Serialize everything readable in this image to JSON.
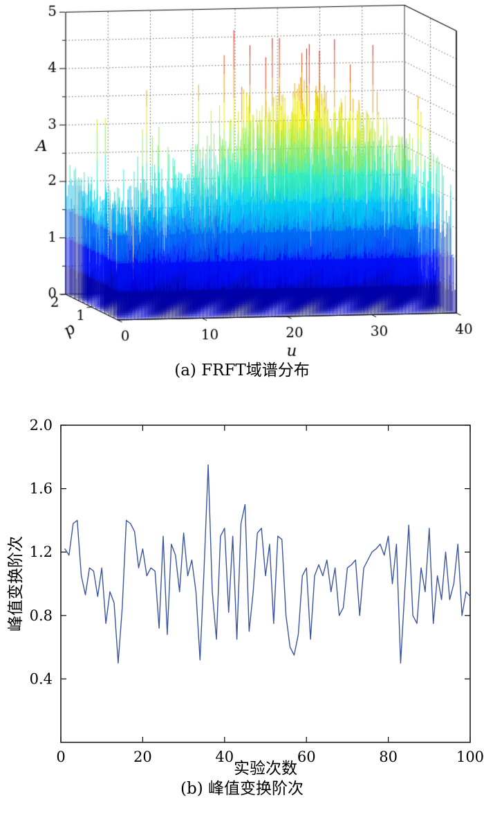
{
  "page": {
    "background": "#ffffff"
  },
  "figure_a": {
    "caption": "(a) FRFT域谱分布",
    "chart_data": {
      "type": "3d-mesh",
      "title": "",
      "xlabel": "u",
      "ylabel": "p",
      "zlabel": "A",
      "x_ticks": [
        "0",
        "10",
        "20",
        "30",
        "40"
      ],
      "y_ticks": [
        "1",
        "2"
      ],
      "z_ticks": [
        "0",
        "1",
        "2",
        "3",
        "4",
        "5"
      ],
      "xlim": [
        0,
        40
      ],
      "ylim": [
        0,
        2
      ],
      "zlim": [
        0,
        5
      ],
      "grid": "dotted",
      "colormap": "jet",
      "colors": {
        "spike_low": "#00007f",
        "spike_mid": "#00c8c8",
        "spike_high": "#ffd000",
        "box": "#000000"
      },
      "description": "Dense random FRFT-domain spectrum amplitude spikes over u (0-40) and p (0-2); amplitudes mostly 0.5-3 (dark blue to cyan) with occasional peaks near 4.5 (yellow/red) concentrated around u = 15-35; solid low dark block near u = 0",
      "generation": {
        "seed": 7,
        "rows": 13,
        "cols": 240,
        "amp_base": 0.9,
        "bump_center": 26,
        "bump_width": 16,
        "bump_height": 1.3,
        "max_amp": 4.7
      }
    }
  },
  "figure_b": {
    "caption": "(b) 峰值变换阶次",
    "chart_data": {
      "type": "line",
      "title": "",
      "xlabel": "实验次数",
      "ylabel": "峰值变换阶次",
      "x_ticks": [
        "0",
        "20",
        "40",
        "60",
        "80",
        "100"
      ],
      "y_ticks": [
        "0.4",
        "0.8",
        "1.2",
        "1.6",
        "2.0"
      ],
      "xlim": [
        0,
        100
      ],
      "ylim": [
        0,
        2.0
      ],
      "grid": "off",
      "legend": "none",
      "line_color": "#3b55a0",
      "x_start": 1,
      "values": [
        1.22,
        1.18,
        1.38,
        1.4,
        1.05,
        0.93,
        1.1,
        1.08,
        0.92,
        1.1,
        0.75,
        0.95,
        0.88,
        0.5,
        0.85,
        1.4,
        1.38,
        1.33,
        1.1,
        1.22,
        1.05,
        1.1,
        1.08,
        0.72,
        1.3,
        0.68,
        1.25,
        1.18,
        0.95,
        1.32,
        1.05,
        1.15,
        0.95,
        0.52,
        1.1,
        1.75,
        0.95,
        0.65,
        1.3,
        1.35,
        0.82,
        1.3,
        0.65,
        1.38,
        1.5,
        0.7,
        0.95,
        1.32,
        1.35,
        1.05,
        1.25,
        0.75,
        1.3,
        1.28,
        0.8,
        0.6,
        0.55,
        0.68,
        1.05,
        1.1,
        0.65,
        1.05,
        1.12,
        1.05,
        1.15,
        0.95,
        1.1,
        0.8,
        0.85,
        1.1,
        1.12,
        1.15,
        0.8,
        1.1,
        1.15,
        1.2,
        1.22,
        1.25,
        1.18,
        1.3,
        1.0,
        1.25,
        0.5,
        0.95,
        1.37,
        0.8,
        0.75,
        1.1,
        0.95,
        1.35,
        0.75,
        1.05,
        0.9,
        1.2,
        0.9,
        1.0,
        1.25,
        0.8,
        0.95,
        0.92
      ]
    }
  }
}
